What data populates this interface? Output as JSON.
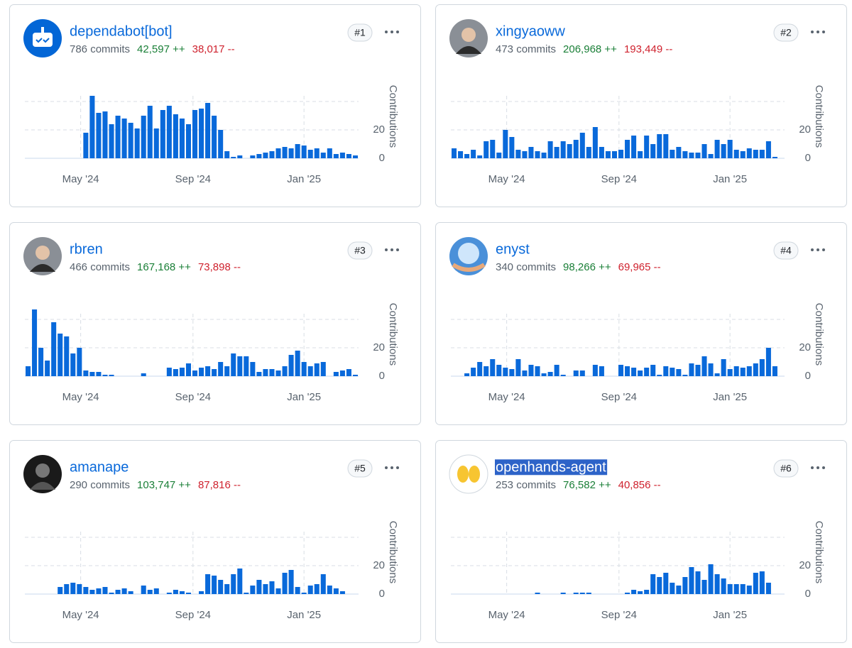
{
  "contributors": [
    {
      "rank": "#1",
      "name": "dependabot[bot]",
      "commits": "786 commits",
      "additions": "42,597 ++",
      "deletions": "38,017 --",
      "chart": {
        "type": "bar",
        "y_axis_label": "Contributions",
        "ylim": [
          0,
          50
        ],
        "yticks": [
          0,
          20
        ],
        "gridlines": [
          40
        ],
        "xlim": [
          0,
          52
        ],
        "xticks": [
          {
            "value": 8.7,
            "label": "May '24"
          },
          {
            "value": 26.2,
            "label": "Sep '24"
          },
          {
            "value": 43.5,
            "label": "Jan '25"
          }
        ],
        "values": [
          0,
          0,
          0,
          0,
          0,
          0,
          0,
          0,
          0,
          18,
          44,
          32,
          33,
          24,
          30,
          28,
          25,
          21,
          30,
          37,
          21,
          34,
          37,
          31,
          28,
          24,
          34,
          35,
          39,
          30,
          20,
          5,
          1,
          2,
          0,
          2,
          3,
          4,
          5,
          7,
          8,
          7,
          10,
          9,
          6,
          7,
          4,
          7,
          3,
          4,
          3,
          2
        ]
      }
    },
    {
      "rank": "#2",
      "name": "xingyaoww",
      "commits": "473 commits",
      "additions": "206,968 ++",
      "deletions": "193,449 --",
      "chart": {
        "type": "bar",
        "y_axis_label": "Contributions",
        "ylim": [
          0,
          50
        ],
        "yticks": [
          0,
          20
        ],
        "gridlines": [
          40
        ],
        "xlim": [
          0,
          52
        ],
        "xticks": [
          {
            "value": 8.7,
            "label": "May '24"
          },
          {
            "value": 26.2,
            "label": "Sep '24"
          },
          {
            "value": 43.5,
            "label": "Jan '25"
          }
        ],
        "values": [
          7,
          5,
          3,
          6,
          2,
          12,
          13,
          4,
          20,
          15,
          6,
          5,
          8,
          5,
          4,
          12,
          8,
          12,
          10,
          13,
          18,
          8,
          22,
          8,
          5,
          5,
          6,
          13,
          16,
          5,
          16,
          10,
          17,
          17,
          6,
          8,
          5,
          4,
          4,
          10,
          3,
          13,
          10,
          13,
          6,
          5,
          7,
          6,
          6,
          12,
          1,
          0
        ]
      }
    },
    {
      "rank": "#3",
      "name": "rbren",
      "commits": "466 commits",
      "additions": "167,168 ++",
      "deletions": "73,898 --",
      "chart": {
        "type": "bar",
        "y_axis_label": "Contributions",
        "ylim": [
          0,
          50
        ],
        "yticks": [
          0,
          20
        ],
        "gridlines": [
          40
        ],
        "xlim": [
          0,
          52
        ],
        "xticks": [
          {
            "value": 8.7,
            "label": "May '24"
          },
          {
            "value": 26.2,
            "label": "Sep '24"
          },
          {
            "value": 43.5,
            "label": "Jan '25"
          }
        ],
        "values": [
          7,
          47,
          20,
          11,
          38,
          30,
          28,
          16,
          20,
          4,
          3,
          3,
          1,
          1,
          0,
          0,
          0,
          0,
          2,
          0,
          0,
          0,
          6,
          5,
          6,
          9,
          4,
          6,
          7,
          5,
          10,
          7,
          16,
          14,
          14,
          10,
          3,
          5,
          5,
          4,
          7,
          15,
          18,
          10,
          7,
          9,
          10,
          0,
          3,
          4,
          5,
          1
        ]
      }
    },
    {
      "rank": "#4",
      "name": "enyst",
      "commits": "340 commits",
      "additions": "98,266 ++",
      "deletions": "69,965 --",
      "chart": {
        "type": "bar",
        "y_axis_label": "Contributions",
        "ylim": [
          0,
          50
        ],
        "yticks": [
          0,
          20
        ],
        "gridlines": [
          40
        ],
        "xlim": [
          0,
          52
        ],
        "xticks": [
          {
            "value": 8.7,
            "label": "May '24"
          },
          {
            "value": 26.2,
            "label": "Sep '24"
          },
          {
            "value": 43.5,
            "label": "Jan '25"
          }
        ],
        "values": [
          0,
          0,
          2,
          6,
          10,
          7,
          12,
          8,
          6,
          5,
          12,
          4,
          8,
          7,
          2,
          3,
          8,
          1,
          0,
          4,
          4,
          0,
          8,
          7,
          0,
          0,
          8,
          7,
          6,
          4,
          6,
          8,
          1,
          7,
          6,
          5,
          1,
          9,
          8,
          14,
          9,
          2,
          12,
          5,
          7,
          6,
          7,
          9,
          12,
          20,
          7,
          0
        ]
      }
    },
    {
      "rank": "#5",
      "name": "amanape",
      "commits": "290 commits",
      "additions": "103,747 ++",
      "deletions": "87,816 --",
      "chart": {
        "type": "bar",
        "y_axis_label": "Contributions",
        "ylim": [
          0,
          50
        ],
        "yticks": [
          0,
          20
        ],
        "gridlines": [
          40
        ],
        "xlim": [
          0,
          52
        ],
        "xticks": [
          {
            "value": 8.7,
            "label": "May '24"
          },
          {
            "value": 26.2,
            "label": "Sep '24"
          },
          {
            "value": 43.5,
            "label": "Jan '25"
          }
        ],
        "values": [
          0,
          0,
          0,
          0,
          0,
          5,
          7,
          8,
          7,
          5,
          3,
          4,
          5,
          1,
          3,
          4,
          2,
          0,
          6,
          3,
          4,
          0,
          1,
          3,
          2,
          1,
          0,
          2,
          14,
          13,
          10,
          7,
          14,
          18,
          1,
          6,
          10,
          7,
          9,
          4,
          15,
          17,
          5,
          1,
          6,
          7,
          14,
          6,
          4,
          2,
          0,
          0
        ]
      }
    },
    {
      "rank": "#6",
      "name": "openhands-agent",
      "highlighted": true,
      "commits": "253 commits",
      "additions": "76,582 ++",
      "deletions": "40,856 --",
      "chart": {
        "type": "bar",
        "y_axis_label": "Contributions",
        "ylim": [
          0,
          50
        ],
        "yticks": [
          0,
          20
        ],
        "gridlines": [
          40
        ],
        "xlim": [
          0,
          52
        ],
        "xticks": [
          {
            "value": 8.7,
            "label": "May '24"
          },
          {
            "value": 26.2,
            "label": "Sep '24"
          },
          {
            "value": 43.5,
            "label": "Jan '25"
          }
        ],
        "values": [
          0,
          0,
          0,
          0,
          0,
          0,
          0,
          0,
          0,
          0,
          0,
          0,
          0,
          1,
          0,
          0,
          0,
          1,
          0,
          1,
          1,
          1,
          0,
          0,
          0,
          0,
          0,
          1,
          3,
          2,
          3,
          14,
          12,
          15,
          8,
          6,
          12,
          19,
          16,
          10,
          21,
          14,
          11,
          7,
          7,
          7,
          6,
          15,
          16,
          8,
          0,
          0
        ]
      }
    }
  ]
}
